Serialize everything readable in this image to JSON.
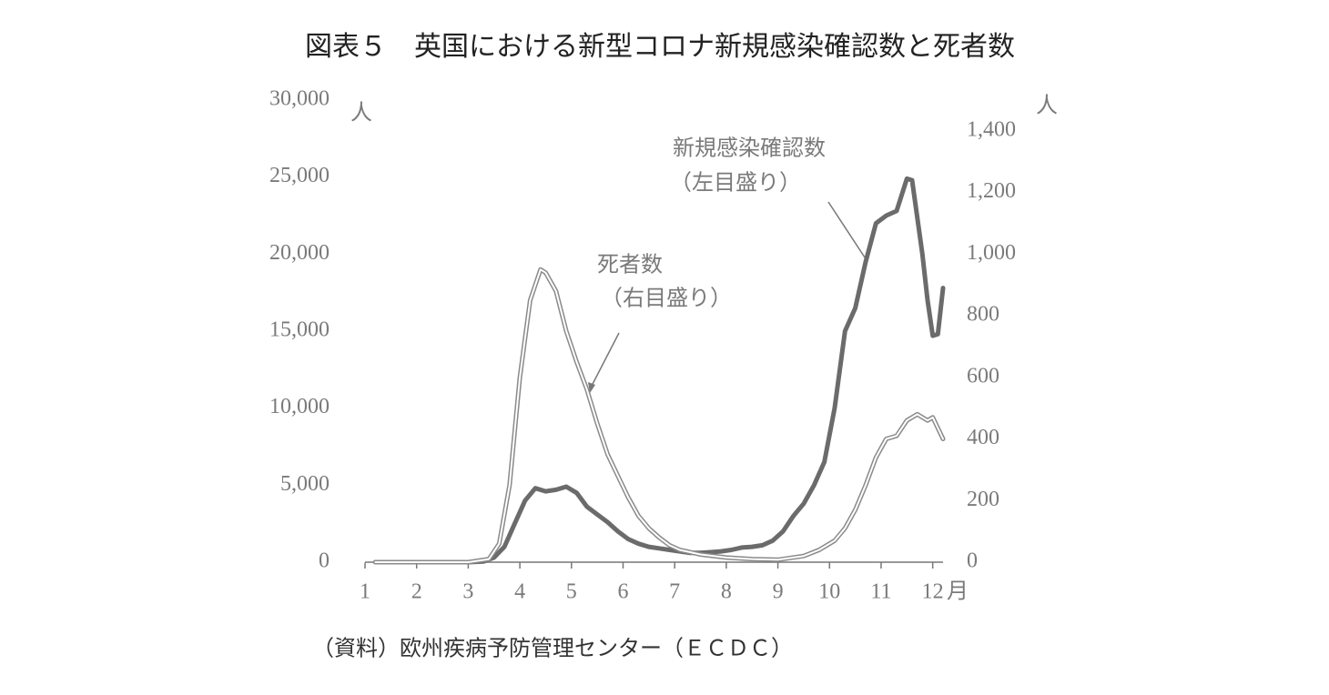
{
  "chart_data": {
    "type": "line",
    "title": "図表５　英国における新型コロナ新規感染確認数と死者数",
    "source": "（資料）欧州疾病予防管理センター（ＥＣＤＣ）",
    "x_label": "月",
    "y_label": "人",
    "y2_label": "人",
    "xlim": [
      1,
      12.2
    ],
    "xticks": [
      1,
      2,
      3,
      4,
      5,
      6,
      7,
      8,
      9,
      10,
      11,
      12
    ],
    "ylim": [
      0,
      30000
    ],
    "yticks": [
      0,
      {
        "value": 5000,
        "label": "5,000"
      },
      {
        "value": 10000,
        "label": "10,000"
      },
      {
        "value": 15000,
        "label": "15,000"
      },
      {
        "value": 20000,
        "label": "20,000"
      },
      {
        "value": 25000,
        "label": "25,000"
      },
      {
        "value": 30000,
        "label": "30,000"
      }
    ],
    "y2lim": [
      0,
      1500
    ],
    "y2ticks": [
      0,
      200,
      400,
      600,
      800,
      {
        "value": 1000,
        "label": "1,000"
      },
      {
        "value": 1200,
        "label": "1,200"
      },
      {
        "value": 1400,
        "label": "1,400"
      }
    ],
    "series": [
      {
        "name": "新規感染確認数",
        "name_note": "（左目盛り）",
        "color": "#6b6b6b",
        "line_style": "solid",
        "x": [
          1.2,
          2,
          3,
          3.3,
          3.5,
          3.7,
          3.9,
          4.1,
          4.3,
          4.5,
          4.7,
          4.9,
          5.1,
          5.3,
          5.5,
          5.7,
          5.9,
          6.1,
          6.3,
          6.5,
          6.7,
          6.9,
          7.1,
          7.3,
          7.5,
          7.7,
          7.9,
          8.1,
          8.3,
          8.5,
          8.7,
          8.9,
          9.1,
          9.3,
          9.5,
          9.7,
          9.9,
          10.1,
          10.3,
          10.5,
          10.7,
          10.9,
          11.1,
          11.3,
          11.5,
          11.6,
          11.8,
          11.9,
          12.0,
          12.1,
          12.2
        ],
        "values": [
          0,
          0,
          0,
          50,
          300,
          1000,
          2500,
          4000,
          4800,
          4600,
          4700,
          4900,
          4500,
          3600,
          3100,
          2600,
          2000,
          1500,
          1200,
          1000,
          900,
          800,
          700,
          600,
          600,
          650,
          700,
          800,
          950,
          1000,
          1100,
          1400,
          2000,
          3000,
          3800,
          5000,
          6500,
          10000,
          15000,
          16500,
          19500,
          22000,
          22500,
          22800,
          24900,
          24800,
          20000,
          17000,
          14700,
          14800,
          17800
        ]
      },
      {
        "name": "死者数",
        "name_note": "（右目盛り）",
        "color": "#8a8a8a",
        "line_style": "double",
        "axis": "y2",
        "x": [
          1.2,
          3,
          3.4,
          3.6,
          3.8,
          4.0,
          4.2,
          4.4,
          4.5,
          4.7,
          4.9,
          5.1,
          5.3,
          5.5,
          5.7,
          5.9,
          6.1,
          6.3,
          6.5,
          6.7,
          6.9,
          7.1,
          7.5,
          8,
          8.5,
          9,
          9.5,
          9.8,
          10.1,
          10.3,
          10.5,
          10.7,
          10.9,
          11.1,
          11.3,
          11.5,
          11.7,
          11.9,
          12.0,
          12.2
        ],
        "values": [
          0,
          0,
          10,
          60,
          250,
          600,
          850,
          950,
          940,
          880,
          750,
          650,
          560,
          450,
          350,
          280,
          210,
          150,
          110,
          80,
          55,
          40,
          25,
          15,
          10,
          8,
          20,
          40,
          70,
          110,
          170,
          250,
          340,
          400,
          410,
          460,
          480,
          460,
          470,
          400
        ]
      }
    ]
  }
}
